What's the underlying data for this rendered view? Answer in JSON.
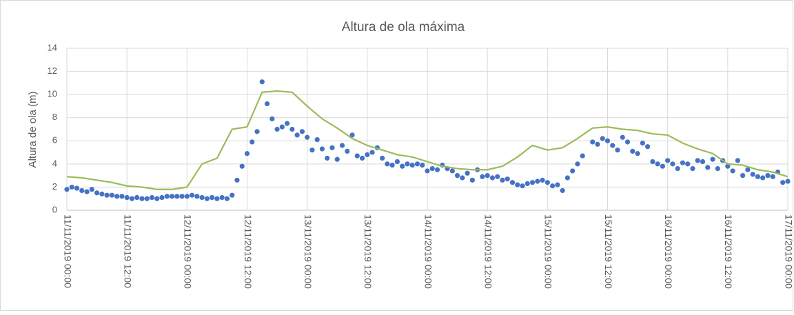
{
  "chart_data": {
    "type": "scatter",
    "title": "Altura de ola máxima",
    "ylabel": "Altura de ola (m)",
    "ylim": [
      0,
      14
    ],
    "yticks": [
      0,
      2,
      4,
      6,
      8,
      10,
      12,
      14
    ],
    "xlim": [
      "11/11/2019 00:00",
      "17/11/2019 00:00"
    ],
    "xticks": [
      "11/11/2019 00:00",
      "11/11/2019 12:00",
      "12/11/2019 00:00",
      "12/11/2019 12:00",
      "13/11/2019 00:00",
      "13/11/2019 12:00",
      "14/11/2019 00:00",
      "14/11/2019 12:00",
      "15/11/2019 00:00",
      "15/11/2019 12:00",
      "16/11/2019 00:00",
      "16/11/2019 12:00",
      "17/11/2019 00:00"
    ],
    "grid": true,
    "series": [
      {
        "type": "scatter",
        "color": "#4472c4",
        "x": [
          "11/11/2019 00:00",
          "11/11/2019 01:00",
          "11/11/2019 02:00",
          "11/11/2019 03:00",
          "11/11/2019 04:00",
          "11/11/2019 05:00",
          "11/11/2019 06:00",
          "11/11/2019 07:00",
          "11/11/2019 08:00",
          "11/11/2019 09:00",
          "11/11/2019 10:00",
          "11/11/2019 11:00",
          "11/11/2019 12:00",
          "11/11/2019 13:00",
          "11/11/2019 14:00",
          "11/11/2019 15:00",
          "11/11/2019 16:00",
          "11/11/2019 17:00",
          "11/11/2019 18:00",
          "11/11/2019 19:00",
          "11/11/2019 20:00",
          "11/11/2019 21:00",
          "11/11/2019 22:00",
          "11/11/2019 23:00",
          "12/11/2019 00:00",
          "12/11/2019 01:00",
          "12/11/2019 02:00",
          "12/11/2019 03:00",
          "12/11/2019 04:00",
          "12/11/2019 05:00",
          "12/11/2019 06:00",
          "12/11/2019 07:00",
          "12/11/2019 08:00",
          "12/11/2019 09:00",
          "12/11/2019 10:00",
          "12/11/2019 11:00",
          "12/11/2019 12:00",
          "12/11/2019 13:00",
          "12/11/2019 14:00",
          "12/11/2019 15:00",
          "12/11/2019 16:00",
          "12/11/2019 17:00",
          "12/11/2019 18:00",
          "12/11/2019 19:00",
          "12/11/2019 20:00",
          "12/11/2019 21:00",
          "12/11/2019 22:00",
          "12/11/2019 23:00",
          "13/11/2019 00:00",
          "13/11/2019 01:00",
          "13/11/2019 02:00",
          "13/11/2019 03:00",
          "13/11/2019 04:00",
          "13/11/2019 05:00",
          "13/11/2019 06:00",
          "13/11/2019 07:00",
          "13/11/2019 08:00",
          "13/11/2019 09:00",
          "13/11/2019 10:00",
          "13/11/2019 11:00",
          "13/11/2019 12:00",
          "13/11/2019 13:00",
          "13/11/2019 14:00",
          "13/11/2019 15:00",
          "13/11/2019 16:00",
          "13/11/2019 17:00",
          "13/11/2019 18:00",
          "13/11/2019 19:00",
          "13/11/2019 20:00",
          "13/11/2019 21:00",
          "13/11/2019 22:00",
          "13/11/2019 23:00",
          "14/11/2019 00:00",
          "14/11/2019 01:00",
          "14/11/2019 02:00",
          "14/11/2019 03:00",
          "14/11/2019 04:00",
          "14/11/2019 05:00",
          "14/11/2019 06:00",
          "14/11/2019 07:00",
          "14/11/2019 08:00",
          "14/11/2019 09:00",
          "14/11/2019 10:00",
          "14/11/2019 11:00",
          "14/11/2019 12:00",
          "14/11/2019 13:00",
          "14/11/2019 14:00",
          "14/11/2019 15:00",
          "14/11/2019 16:00",
          "14/11/2019 17:00",
          "14/11/2019 18:00",
          "14/11/2019 19:00",
          "14/11/2019 20:00",
          "14/11/2019 21:00",
          "14/11/2019 22:00",
          "14/11/2019 23:00",
          "15/11/2019 00:00",
          "15/11/2019 01:00",
          "15/11/2019 02:00",
          "15/11/2019 03:00",
          "15/11/2019 04:00",
          "15/11/2019 05:00",
          "15/11/2019 06:00",
          "15/11/2019 07:00",
          "15/11/2019 09:00",
          "15/11/2019 10:00",
          "15/11/2019 11:00",
          "15/11/2019 12:00",
          "15/11/2019 13:00",
          "15/11/2019 14:00",
          "15/11/2019 15:00",
          "15/11/2019 16:00",
          "15/11/2019 17:00",
          "15/11/2019 18:00",
          "15/11/2019 19:00",
          "15/11/2019 20:00",
          "15/11/2019 21:00",
          "15/11/2019 22:00",
          "15/11/2019 23:00",
          "16/11/2019 00:00",
          "16/11/2019 01:00",
          "16/11/2019 02:00",
          "16/11/2019 03:00",
          "16/11/2019 04:00",
          "16/11/2019 05:00",
          "16/11/2019 06:00",
          "16/11/2019 07:00",
          "16/11/2019 08:00",
          "16/11/2019 09:00",
          "16/11/2019 10:00",
          "16/11/2019 11:00",
          "16/11/2019 12:00",
          "16/11/2019 13:00",
          "16/11/2019 14:00",
          "16/11/2019 15:00",
          "16/11/2019 16:00",
          "16/11/2019 17:00",
          "16/11/2019 18:00",
          "16/11/2019 19:00",
          "16/11/2019 20:00",
          "16/11/2019 21:00",
          "16/11/2019 22:00",
          "16/11/2019 23:00",
          "17/11/2019 00:00"
        ],
        "values": [
          1.8,
          2.0,
          1.9,
          1.7,
          1.6,
          1.8,
          1.5,
          1.4,
          1.3,
          1.3,
          1.2,
          1.2,
          1.1,
          1.0,
          1.1,
          1.0,
          1.0,
          1.1,
          1.0,
          1.1,
          1.2,
          1.2,
          1.2,
          1.2,
          1.2,
          1.3,
          1.2,
          1.1,
          1.0,
          1.1,
          1.0,
          1.1,
          1.0,
          1.3,
          2.6,
          3.8,
          4.9,
          5.9,
          6.8,
          11.1,
          9.2,
          7.9,
          7.0,
          7.2,
          7.5,
          7.0,
          6.5,
          6.8,
          6.3,
          5.2,
          6.1,
          5.3,
          4.5,
          5.4,
          4.4,
          5.6,
          5.1,
          6.5,
          4.7,
          4.5,
          4.8,
          5.0,
          5.4,
          4.5,
          4.0,
          3.9,
          4.2,
          3.8,
          4.0,
          3.9,
          4.0,
          3.9,
          3.4,
          3.6,
          3.5,
          3.9,
          3.6,
          3.4,
          3.0,
          2.8,
          3.2,
          2.6,
          3.5,
          2.9,
          3.0,
          2.8,
          2.9,
          2.6,
          2.7,
          2.4,
          2.2,
          2.1,
          2.3,
          2.4,
          2.5,
          2.6,
          2.4,
          2.1,
          2.2,
          1.7,
          2.8,
          3.4,
          4.0,
          4.7,
          5.9,
          5.7,
          6.2,
          6.0,
          5.6,
          5.2,
          6.3,
          5.9,
          5.1,
          4.9,
          5.8,
          5.5,
          4.2,
          4.0,
          3.8,
          4.3,
          4.0,
          3.6,
          4.1,
          4.0,
          3.6,
          4.3,
          4.2,
          3.7,
          4.4,
          3.6,
          4.3,
          3.8,
          3.4,
          4.3,
          3.0,
          3.5,
          3.1,
          2.9,
          2.8,
          3.0,
          2.9,
          3.3,
          2.4,
          2.5
        ]
      },
      {
        "type": "line",
        "color": "#9bbb59",
        "x": [
          "11/11/2019 00:00",
          "11/11/2019 03:00",
          "11/11/2019 06:00",
          "11/11/2019 09:00",
          "11/11/2019 12:00",
          "11/11/2019 15:00",
          "11/11/2019 18:00",
          "11/11/2019 21:00",
          "12/11/2019 00:00",
          "12/11/2019 03:00",
          "12/11/2019 06:00",
          "12/11/2019 09:00",
          "12/11/2019 12:00",
          "12/11/2019 15:00",
          "12/11/2019 18:00",
          "12/11/2019 21:00",
          "13/11/2019 00:00",
          "13/11/2019 03:00",
          "13/11/2019 06:00",
          "13/11/2019 09:00",
          "13/11/2019 12:00",
          "13/11/2019 15:00",
          "13/11/2019 18:00",
          "13/11/2019 21:00",
          "14/11/2019 00:00",
          "14/11/2019 03:00",
          "14/11/2019 06:00",
          "14/11/2019 09:00",
          "14/11/2019 12:00",
          "14/11/2019 15:00",
          "14/11/2019 18:00",
          "14/11/2019 21:00",
          "15/11/2019 00:00",
          "15/11/2019 03:00",
          "15/11/2019 06:00",
          "15/11/2019 09:00",
          "15/11/2019 12:00",
          "15/11/2019 15:00",
          "15/11/2019 18:00",
          "15/11/2019 21:00",
          "16/11/2019 00:00",
          "16/11/2019 03:00",
          "16/11/2019 06:00",
          "16/11/2019 09:00",
          "16/11/2019 12:00",
          "16/11/2019 15:00",
          "16/11/2019 18:00",
          "16/11/2019 21:00",
          "17/11/2019 00:00"
        ],
        "values": [
          2.9,
          2.8,
          2.6,
          2.4,
          2.1,
          2.0,
          1.8,
          1.8,
          2.0,
          4.0,
          4.5,
          7.0,
          7.2,
          10.2,
          10.3,
          10.2,
          9.0,
          7.9,
          7.1,
          6.2,
          5.6,
          5.2,
          4.8,
          4.6,
          4.2,
          3.8,
          3.6,
          3.5,
          3.5,
          3.8,
          4.6,
          5.6,
          5.2,
          5.4,
          6.2,
          7.1,
          7.2,
          7.0,
          6.9,
          6.6,
          6.5,
          5.8,
          5.3,
          4.9,
          4.0,
          3.9,
          3.5,
          3.3,
          2.9
        ]
      }
    ]
  }
}
